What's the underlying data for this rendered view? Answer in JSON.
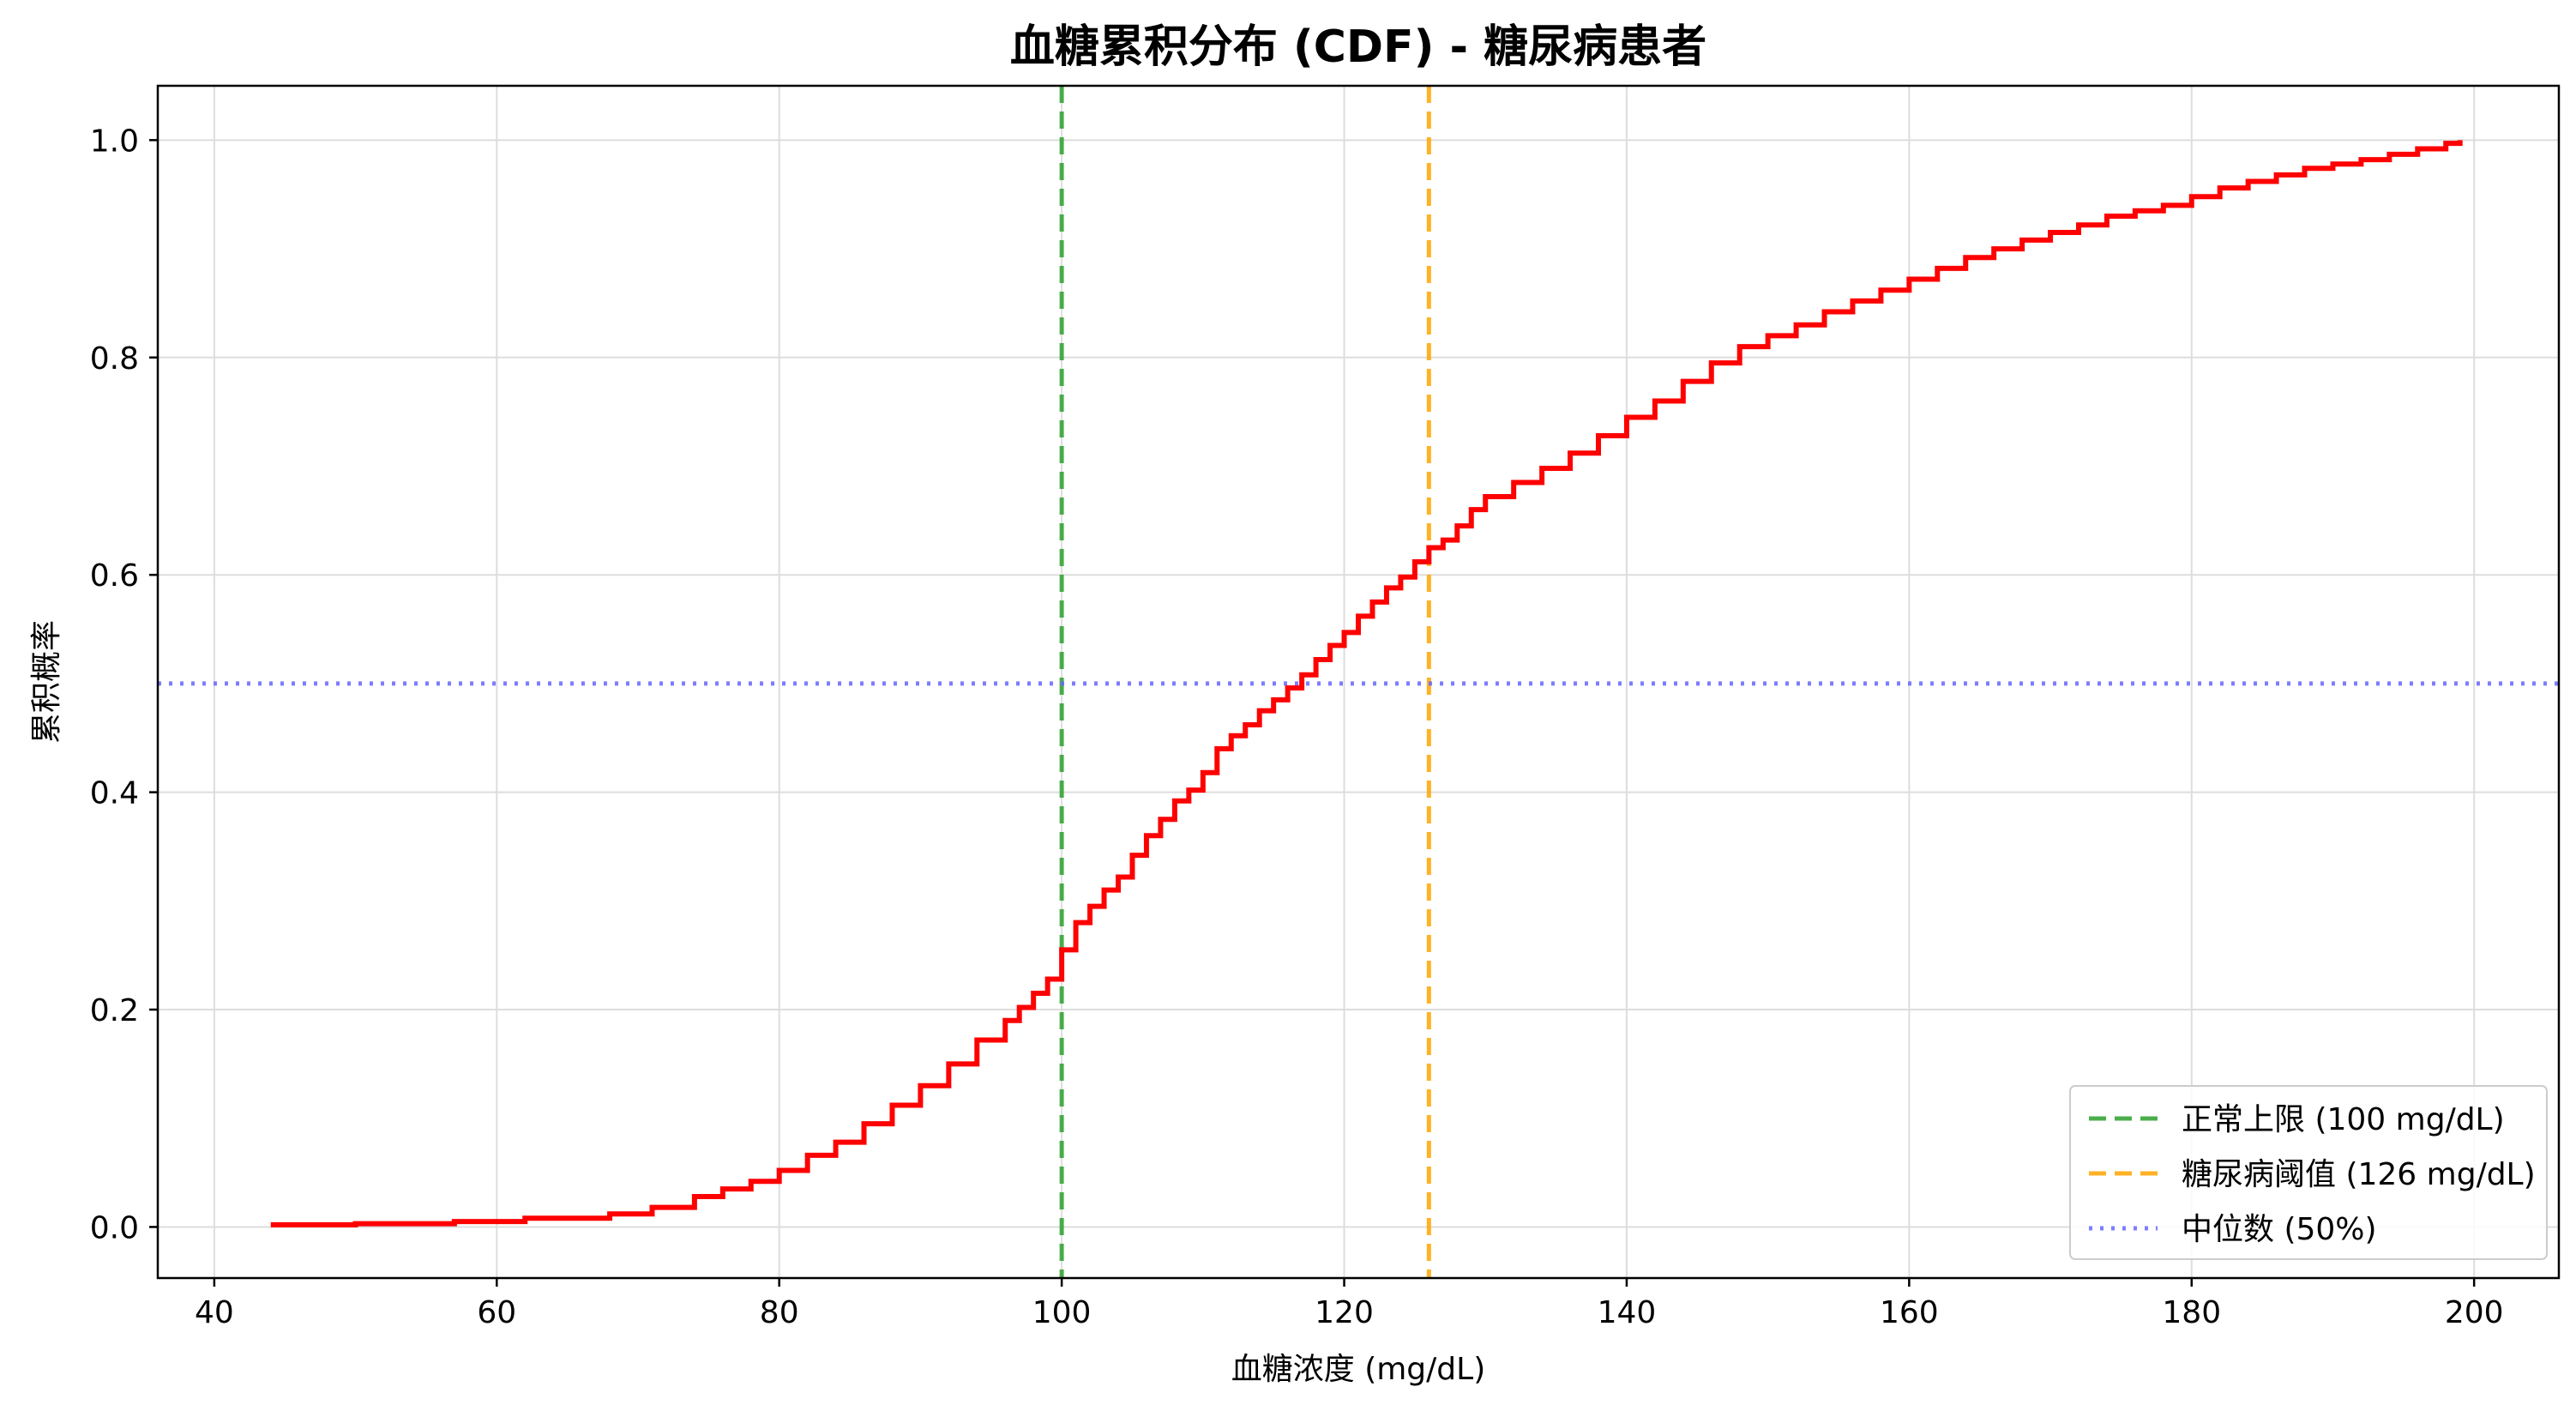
{
  "chart_data": {
    "type": "line",
    "title": "血糖累积分布 (CDF) - 糖尿病患者",
    "xlabel": "血糖浓度 (mg/dL)",
    "ylabel": "累积概率",
    "xlim": [
      36,
      206
    ],
    "ylim": [
      -0.047,
      1.05
    ],
    "xticks": [
      40,
      60,
      80,
      100,
      120,
      140,
      160,
      180,
      200
    ],
    "yticks": [
      0.0,
      0.2,
      0.4,
      0.6,
      0.8,
      1.0
    ],
    "xtick_labels": [
      "40",
      "60",
      "80",
      "100",
      "120",
      "140",
      "160",
      "180",
      "200"
    ],
    "ytick_labels": [
      "0.0",
      "0.2",
      "0.4",
      "0.6",
      "0.8",
      "1.0"
    ],
    "grid": true,
    "legend_position": "lower-right",
    "series": [
      {
        "name": "",
        "color": "#ff0000",
        "style": "step",
        "points": [
          [
            44,
            0.002
          ],
          [
            50,
            0.003
          ],
          [
            57,
            0.005
          ],
          [
            62,
            0.008
          ],
          [
            68,
            0.012
          ],
          [
            71,
            0.018
          ],
          [
            74,
            0.028
          ],
          [
            76,
            0.035
          ],
          [
            78,
            0.042
          ],
          [
            80,
            0.052
          ],
          [
            82,
            0.066
          ],
          [
            84,
            0.078
          ],
          [
            86,
            0.095
          ],
          [
            88,
            0.112
          ],
          [
            90,
            0.13
          ],
          [
            92,
            0.15
          ],
          [
            94,
            0.172
          ],
          [
            96,
            0.19
          ],
          [
            97,
            0.202
          ],
          [
            98,
            0.215
          ],
          [
            99,
            0.228
          ],
          [
            100,
            0.255
          ],
          [
            101,
            0.28
          ],
          [
            102,
            0.295
          ],
          [
            103,
            0.31
          ],
          [
            104,
            0.322
          ],
          [
            105,
            0.342
          ],
          [
            106,
            0.36
          ],
          [
            107,
            0.375
          ],
          [
            108,
            0.392
          ],
          [
            109,
            0.402
          ],
          [
            110,
            0.418
          ],
          [
            111,
            0.44
          ],
          [
            112,
            0.452
          ],
          [
            113,
            0.462
          ],
          [
            114,
            0.475
          ],
          [
            115,
            0.485
          ],
          [
            116,
            0.496
          ],
          [
            117,
            0.508
          ],
          [
            118,
            0.522
          ],
          [
            119,
            0.535
          ],
          [
            120,
            0.547
          ],
          [
            121,
            0.562
          ],
          [
            122,
            0.575
          ],
          [
            123,
            0.588
          ],
          [
            124,
            0.598
          ],
          [
            125,
            0.612
          ],
          [
            126,
            0.625
          ],
          [
            127,
            0.632
          ],
          [
            128,
            0.645
          ],
          [
            129,
            0.66
          ],
          [
            130,
            0.672
          ],
          [
            132,
            0.685
          ],
          [
            134,
            0.698
          ],
          [
            136,
            0.712
          ],
          [
            138,
            0.728
          ],
          [
            140,
            0.745
          ],
          [
            142,
            0.76
          ],
          [
            144,
            0.778
          ],
          [
            146,
            0.795
          ],
          [
            148,
            0.81
          ],
          [
            150,
            0.82
          ],
          [
            152,
            0.83
          ],
          [
            154,
            0.842
          ],
          [
            156,
            0.852
          ],
          [
            158,
            0.862
          ],
          [
            160,
            0.872
          ],
          [
            162,
            0.882
          ],
          [
            164,
            0.892
          ],
          [
            166,
            0.9
          ],
          [
            168,
            0.908
          ],
          [
            170,
            0.915
          ],
          [
            172,
            0.922
          ],
          [
            174,
            0.93
          ],
          [
            176,
            0.935
          ],
          [
            178,
            0.94
          ],
          [
            180,
            0.948
          ],
          [
            182,
            0.956
          ],
          [
            184,
            0.962
          ],
          [
            186,
            0.968
          ],
          [
            188,
            0.974
          ],
          [
            190,
            0.978
          ],
          [
            192,
            0.982
          ],
          [
            194,
            0.987
          ],
          [
            196,
            0.992
          ],
          [
            198,
            0.997
          ],
          [
            199,
            1.0
          ]
        ]
      }
    ],
    "reference_lines": [
      {
        "orientation": "vertical",
        "value": 100,
        "label": "正常上限 (100 mg/dL)",
        "color": "#2ca02c",
        "dash": "dashed"
      },
      {
        "orientation": "vertical",
        "value": 126,
        "label": "糖尿病阈值 (126 mg/dL)",
        "color": "#ffa500",
        "dash": "dashed"
      },
      {
        "orientation": "horizontal",
        "value": 0.5,
        "label": "中位数 (50%)",
        "color": "#6666ff",
        "dash": "dotted"
      }
    ]
  }
}
